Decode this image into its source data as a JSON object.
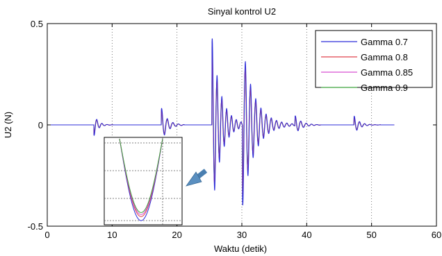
{
  "chart_data": {
    "type": "line",
    "title": "Sinyal kontrol U2",
    "xlabel": "Waktu (detik)",
    "ylabel": "U2 (N)",
    "xlim": [
      0,
      60
    ],
    "ylim": [
      -0.5,
      0.5
    ],
    "x_ticks": [
      0,
      10,
      20,
      30,
      40,
      50,
      60
    ],
    "x_tick_labels": [
      "0",
      "10",
      "20",
      "30",
      "40",
      "50",
      "60"
    ],
    "y_ticks": [
      -0.5,
      0,
      0.5
    ],
    "y_tick_labels": [
      "-0.5",
      "0",
      "0.5"
    ],
    "grid": "dotted vertical lines at x ticks",
    "legend": {
      "placement": "top-right"
    },
    "series": [
      {
        "name": "Gamma 0.7",
        "color": "#2b2bd9",
        "amplitude": 1.0
      },
      {
        "name": "Gamma 0.8",
        "color": "#e0404a",
        "amplitude": 0.9
      },
      {
        "name": "Gamma 0.85",
        "color": "#d64fd2",
        "amplitude": 0.85
      },
      {
        "name": "Gamma 0.9",
        "color": "#3aa23a",
        "amplitude": 0.8
      }
    ],
    "events": [
      {
        "t": 7.2,
        "duration": 3.0,
        "peak": 0.055,
        "freq": 1.25,
        "decay": 1.6,
        "sign": -1
      },
      {
        "t": 17.6,
        "duration": 3.5,
        "peak": 0.085,
        "freq": 1.15,
        "decay": 1.1,
        "sign": 1
      },
      {
        "t": 25.4,
        "duration": 5.0,
        "peak": 0.44,
        "freq": 1.35,
        "decay": 0.75,
        "sign": 1
      },
      {
        "t": 30.1,
        "duration": 10.5,
        "peak": 0.4,
        "freq": 1.25,
        "decay": 0.55,
        "sign": -1
      },
      {
        "t": 38.2,
        "duration": 4.0,
        "peak": 0.05,
        "freq": 1.2,
        "decay": 1.0,
        "sign": 1
      },
      {
        "t": 47.3,
        "duration": 4.5,
        "peak": 0.045,
        "freq": 1.25,
        "decay": 1.2,
        "sign": 1
      }
    ],
    "zoom_inset": {
      "target": "left negative dip",
      "arrow": "points to main plot"
    }
  },
  "colors": {
    "axes": "#000000",
    "grid": "#555555",
    "background": "#ffffff"
  }
}
